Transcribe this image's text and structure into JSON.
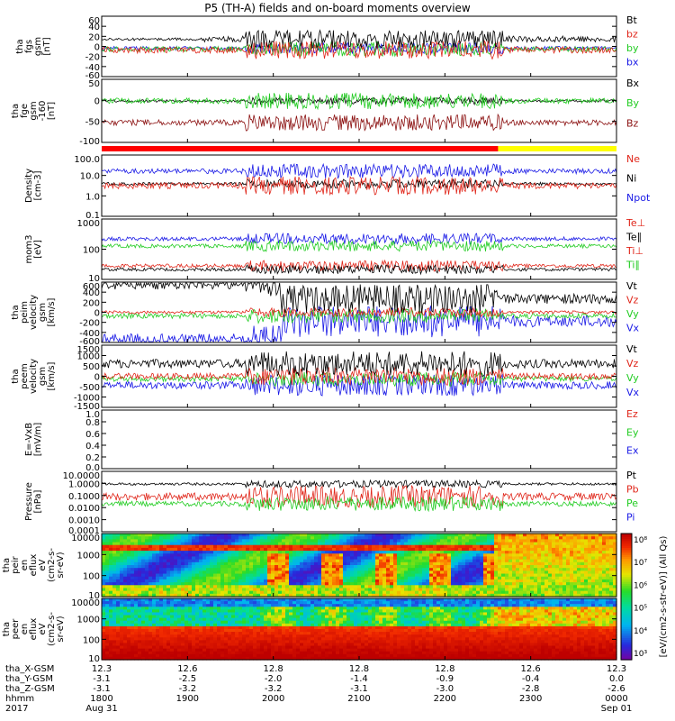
{
  "title": "P5 (TH-A) fields and on-board moments overview",
  "panels": [
    {
      "key": "fgs",
      "ylabel": [
        "tha",
        "fgs",
        "gsm",
        "[nT]"
      ],
      "ticks": [
        "60",
        "40",
        "20",
        "0",
        "-20",
        "-40",
        "-60"
      ],
      "legend": [
        {
          "text": "Bt",
          "color": "#000000"
        },
        {
          "text": "bz",
          "color": "#e0261a"
        },
        {
          "text": "by",
          "color": "#22cc22"
        },
        {
          "text": "bx",
          "color": "#1a1ae6"
        }
      ],
      "ylim": [
        -60,
        60
      ],
      "series_levels": {
        "Bt": 15,
        "bz": -5,
        "by": 0,
        "bx": -2
      }
    },
    {
      "key": "fge",
      "ylabel": [
        "tha",
        "fge",
        "gsm",
        "-160",
        "[nT]"
      ],
      "ticks": [
        "50",
        "0",
        "-50",
        "-100"
      ],
      "legend": [
        {
          "text": "Bx",
          "color": "#000000"
        },
        {
          "text": "By",
          "color": "#22cc22"
        },
        {
          "text": "Bz",
          "color": "#8b1010"
        }
      ],
      "ylim": [
        -120,
        50
      ],
      "series_levels": {
        "Bx": 0,
        "By": 2,
        "Bz": -65
      }
    },
    {
      "key": "density",
      "ylabel": [
        "Density",
        "[cm-3]"
      ],
      "ticks": [
        "100.0",
        "10.0",
        "1.0",
        "0.1"
      ],
      "legend": [
        {
          "text": "Ne",
          "color": "#e0261a"
        },
        {
          "text": "Ni",
          "color": "#000000"
        },
        {
          "text": "Npot",
          "color": "#1a1ae6"
        }
      ],
      "scale": "log",
      "ylim": [
        0.1,
        100
      ]
    },
    {
      "key": "temperature",
      "ylabel": [
        "mom3",
        "[eV]"
      ],
      "ticks": [
        "1000",
        "100",
        "10"
      ],
      "legend": [
        {
          "text": "Te⊥",
          "color": "#e0261a"
        },
        {
          "text": "Te∥",
          "color": "#000000"
        },
        {
          "text": "Ti⊥",
          "color": "#e0261a"
        },
        {
          "text": "Ti∥",
          "color": "#22cc22"
        }
      ],
      "scale": "log",
      "ylim": [
        10,
        3000
      ]
    },
    {
      "key": "peim-velocity",
      "ylabel": [
        "tha",
        "peim",
        "velocity",
        "gsm",
        "[km/s]"
      ],
      "ticks": [
        "600",
        "400",
        "200",
        "0",
        "-200",
        "-400",
        "-600"
      ],
      "legend": [
        {
          "text": "Vt",
          "color": "#000000"
        },
        {
          "text": "Vz",
          "color": "#e0261a"
        },
        {
          "text": "Vy",
          "color": "#22cc22"
        },
        {
          "text": "Vx",
          "color": "#1a1ae6"
        }
      ],
      "ylim": [
        -600,
        600
      ]
    },
    {
      "key": "peem-velocity",
      "ylabel": [
        "tha",
        "peem",
        "velocity",
        "gsm",
        "[km/s]"
      ],
      "ticks": [
        "1500",
        "1000",
        "500",
        "0",
        "-500",
        "-1000",
        "-1500"
      ],
      "legend": [
        {
          "text": "Vt",
          "color": "#000000"
        },
        {
          "text": "Vz",
          "color": "#e0261a"
        },
        {
          "text": "Vy",
          "color": "#22cc22"
        },
        {
          "text": "Vx",
          "color": "#1a1ae6"
        }
      ],
      "ylim": [
        -1500,
        1500
      ]
    },
    {
      "key": "efield",
      "ylabel": [
        "E=-VxB",
        "[mV/m]"
      ],
      "ticks": [
        "1.0",
        "0.8",
        "0.6",
        "0.4",
        "0.2",
        "0.0"
      ],
      "legend": [
        {
          "text": "Ez",
          "color": "#e0261a"
        },
        {
          "text": "Ey",
          "color": "#22cc22"
        },
        {
          "text": "Ex",
          "color": "#1a1ae6"
        }
      ],
      "ylim": [
        0,
        1
      ]
    },
    {
      "key": "pressure",
      "ylabel": [
        "Pressure",
        "[nPa]"
      ],
      "ticks": [
        "10.0000",
        "1.0000",
        "0.1000",
        "0.0100",
        "0.0010",
        "0.0001"
      ],
      "legend": [
        {
          "text": "Pt",
          "color": "#000000"
        },
        {
          "text": "Pb",
          "color": "#e0261a"
        },
        {
          "text": "Pe",
          "color": "#22cc22"
        },
        {
          "text": "Pi",
          "color": "#1a1ae6"
        }
      ],
      "scale": "log",
      "ylim": [
        0.0001,
        10
      ]
    },
    {
      "key": "peir-spec",
      "ylabel": [
        "tha",
        "peir",
        "en",
        "eflux",
        "eV",
        "(cm2-s-",
        "sr-eV)"
      ],
      "ticks": [
        "10000",
        "1000",
        "100",
        "10"
      ],
      "scale": "log"
    },
    {
      "key": "peer-spec",
      "ylabel": [
        "tha",
        "peer",
        "en",
        "eflux",
        "eV",
        "(cm2-s-",
        "sr-eV)"
      ],
      "ticks": [
        "10000",
        "1000",
        "100",
        "10"
      ],
      "scale": "log"
    }
  ],
  "colorbar_label": "[eV/(cm2-s-str-eV)] (All Qs)",
  "colorbar_ticks": [
    "10⁸",
    "10⁷",
    "10⁶",
    "10⁵",
    "10⁴",
    "10³"
  ],
  "chart_data": {
    "type": "line",
    "title": "P5 (TH-A) fields and on-board moments overview",
    "x": [
      "1800",
      "1900",
      "2000",
      "2100",
      "2200",
      "2300",
      "0000"
    ],
    "x_rows": [
      {
        "label": "tha_X-GSM",
        "values": [
          "12.3",
          "12.6",
          "12.8",
          "12.8",
          "12.8",
          "12.6",
          "12.3"
        ]
      },
      {
        "label": "tha_Y-GSM",
        "values": [
          "-3.1",
          "-2.5",
          "-2.0",
          "-1.4",
          "-0.9",
          "-0.4",
          "0.0"
        ]
      },
      {
        "label": "tha_Z-GSM",
        "values": [
          "-3.1",
          "-3.2",
          "-3.2",
          "-3.1",
          "-3.0",
          "-2.8",
          "-2.6"
        ]
      },
      {
        "label": "hhmm",
        "values": [
          "1800",
          "1900",
          "2000",
          "2100",
          "2200",
          "2300",
          "0000"
        ]
      }
    ],
    "date_left": [
      "2017",
      "Aug 31"
    ],
    "date_right": "Sep 01",
    "mode_bar": [
      {
        "from": "1800",
        "to": "2249",
        "color": "#ff0000"
      },
      {
        "from": "2249",
        "to": "0000",
        "color": "#ffff00"
      }
    ]
  }
}
